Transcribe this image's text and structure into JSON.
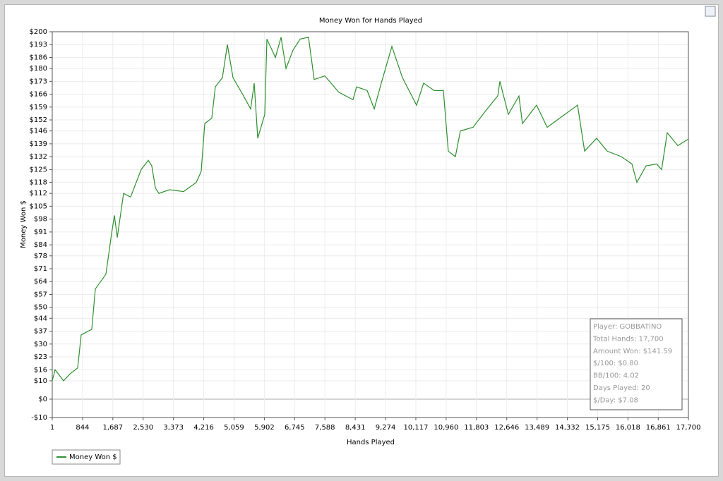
{
  "chart_data": {
    "type": "line",
    "title": "Money Won for Hands Played",
    "xlabel": "Hands Played",
    "ylabel": "Money Won $",
    "xlim": [
      1,
      17700
    ],
    "ylim": [
      -10,
      200
    ],
    "xticks": [
      1,
      844,
      {
        "value": 1687,
        "label": "1,687"
      },
      {
        "value": 2530,
        "label": "2,530"
      },
      {
        "value": 3373,
        "label": "3,373"
      },
      {
        "value": 4216,
        "label": "4,216"
      },
      {
        "value": 5059,
        "label": "5,059"
      },
      {
        "value": 5902,
        "label": "5,902"
      },
      {
        "value": 6745,
        "label": "6,745"
      },
      {
        "value": 7588,
        "label": "7,588"
      },
      {
        "value": 8431,
        "label": "8,431"
      },
      {
        "value": 9274,
        "label": "9,274"
      },
      {
        "value": 10117,
        "label": "10,117"
      },
      {
        "value": 10960,
        "label": "10,960"
      },
      {
        "value": 11803,
        "label": "11,803"
      },
      {
        "value": 12646,
        "label": "12,646"
      },
      {
        "value": 13489,
        "label": "13,489"
      },
      {
        "value": 14332,
        "label": "14,332"
      },
      {
        "value": 15175,
        "label": "15,175"
      },
      {
        "value": 16018,
        "label": "16,018"
      },
      {
        "value": 16861,
        "label": "16,861"
      },
      {
        "value": 17700,
        "label": "17,700"
      }
    ],
    "yticks": [
      {
        "value": -10,
        "label": "-$10"
      },
      {
        "value": 0,
        "label": "$0"
      },
      {
        "value": 10,
        "label": "$10"
      },
      {
        "value": 16,
        "label": "$16"
      },
      {
        "value": 23,
        "label": "$23"
      },
      {
        "value": 30,
        "label": "$30"
      },
      {
        "value": 37,
        "label": "$37"
      },
      {
        "value": 44,
        "label": "$44"
      },
      {
        "value": 50,
        "label": "$50"
      },
      {
        "value": 57,
        "label": "$57"
      },
      {
        "value": 64,
        "label": "$64"
      },
      {
        "value": 71,
        "label": "$71"
      },
      {
        "value": 78,
        "label": "$78"
      },
      {
        "value": 84,
        "label": "$84"
      },
      {
        "value": 91,
        "label": "$91"
      },
      {
        "value": 98,
        "label": "$98"
      },
      {
        "value": 105,
        "label": "$105"
      },
      {
        "value": 112,
        "label": "$112"
      },
      {
        "value": 118,
        "label": "$118"
      },
      {
        "value": 125,
        "label": "$125"
      },
      {
        "value": 132,
        "label": "$132"
      },
      {
        "value": 139,
        "label": "$139"
      },
      {
        "value": 146,
        "label": "$146"
      },
      {
        "value": 152,
        "label": "$152"
      },
      {
        "value": 159,
        "label": "$159"
      },
      {
        "value": 166,
        "label": "$166"
      },
      {
        "value": 173,
        "label": "$173"
      },
      {
        "value": 180,
        "label": "$180"
      },
      {
        "value": 186,
        "label": "$186"
      },
      {
        "value": 193,
        "label": "$193"
      },
      {
        "value": 200,
        "label": "$200"
      }
    ],
    "grid": true,
    "legend": "lower-left",
    "x": [
      1,
      80,
      315,
      510,
      708,
      806,
      1100,
      1200,
      1494,
      1651,
      1730,
      1810,
      1985,
      2180,
      2475,
      2673,
      2770,
      2870,
      2967,
      3262,
      3655,
      4008,
      4145,
      4244,
      4440,
      4538,
      4735,
      4873,
      5030,
      5325,
      5521,
      5620,
      5718,
      5914,
      5973,
      6210,
      6367,
      6505,
      6700,
      6896,
      7131,
      7288,
      7583,
      7976,
      8369,
      8467,
      8762,
      8959,
      9155,
      9450,
      9744,
      10137,
      10333,
      10628,
      10883,
      11020,
      11217,
      11355,
      11708,
      12101,
      12396,
      12455,
      12690,
      12985,
      13083,
      13476,
      13771,
      14262,
      14616,
      14812,
      15146,
      15441,
      15834,
      16129,
      16266,
      16522,
      16817,
      16954,
      17111,
      17406,
      17700
    ],
    "series": [
      {
        "name": "Money Won $",
        "color": "#2f8f2f",
        "values": [
          10,
          16,
          10,
          14,
          17,
          35,
          38,
          60,
          68,
          90,
          100,
          88,
          112,
          110,
          125,
          130,
          127,
          115,
          112,
          114,
          113,
          118,
          124,
          150,
          153,
          170,
          175,
          193,
          175,
          165,
          158,
          172,
          142,
          155,
          196,
          186,
          197,
          180,
          190,
          196,
          197,
          174,
          176,
          167,
          163,
          170,
          168,
          158,
          172,
          192,
          175,
          160,
          172,
          168,
          168,
          135,
          132,
          146,
          148,
          158,
          165,
          173,
          155,
          165,
          150,
          160,
          148,
          155,
          160,
          135,
          142,
          135,
          132,
          128,
          118,
          127,
          128,
          125,
          145,
          138,
          141.59
        ]
      }
    ],
    "annotations": [
      "Player: GOBBATINO",
      "Total Hands: 17,700",
      "Amount Won: $141.59",
      "$/100: $0.80",
      "BB/100: 4.02",
      "Days Played: 20",
      "$/Day: $7.08"
    ]
  }
}
